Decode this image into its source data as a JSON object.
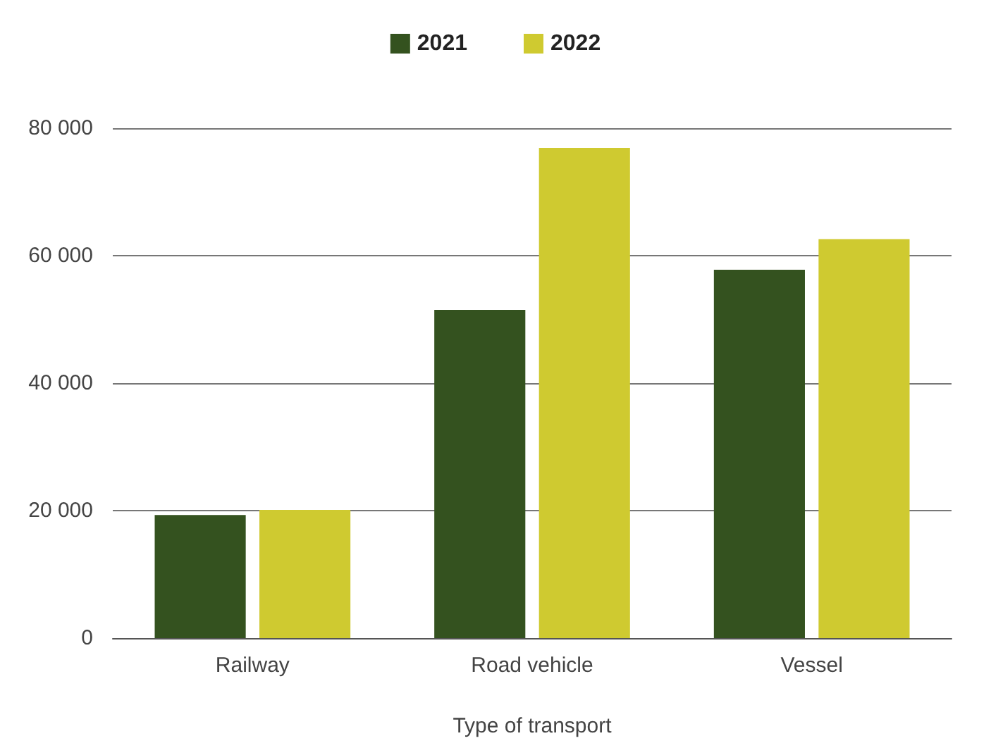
{
  "chart_data": {
    "type": "bar",
    "xlabel": "Type of transport",
    "categories": [
      "Railway",
      "Road vehicle",
      "Vessel"
    ],
    "series": [
      {
        "name": "2021",
        "color": "#34521f",
        "values": [
          19300,
          51500,
          57800
        ]
      },
      {
        "name": "2022",
        "color": "#cfca30",
        "values": [
          20100,
          76900,
          62600
        ]
      }
    ],
    "ylim": [
      0,
      80000
    ],
    "yticks": [
      {
        "value": 0,
        "label": "0"
      },
      {
        "value": 20000,
        "label": "20 000"
      },
      {
        "value": 40000,
        "label": "40 000"
      },
      {
        "value": 60000,
        "label": "60 000"
      },
      {
        "value": 80000,
        "label": "80 000"
      }
    ],
    "grid": "y",
    "legend": "top"
  }
}
